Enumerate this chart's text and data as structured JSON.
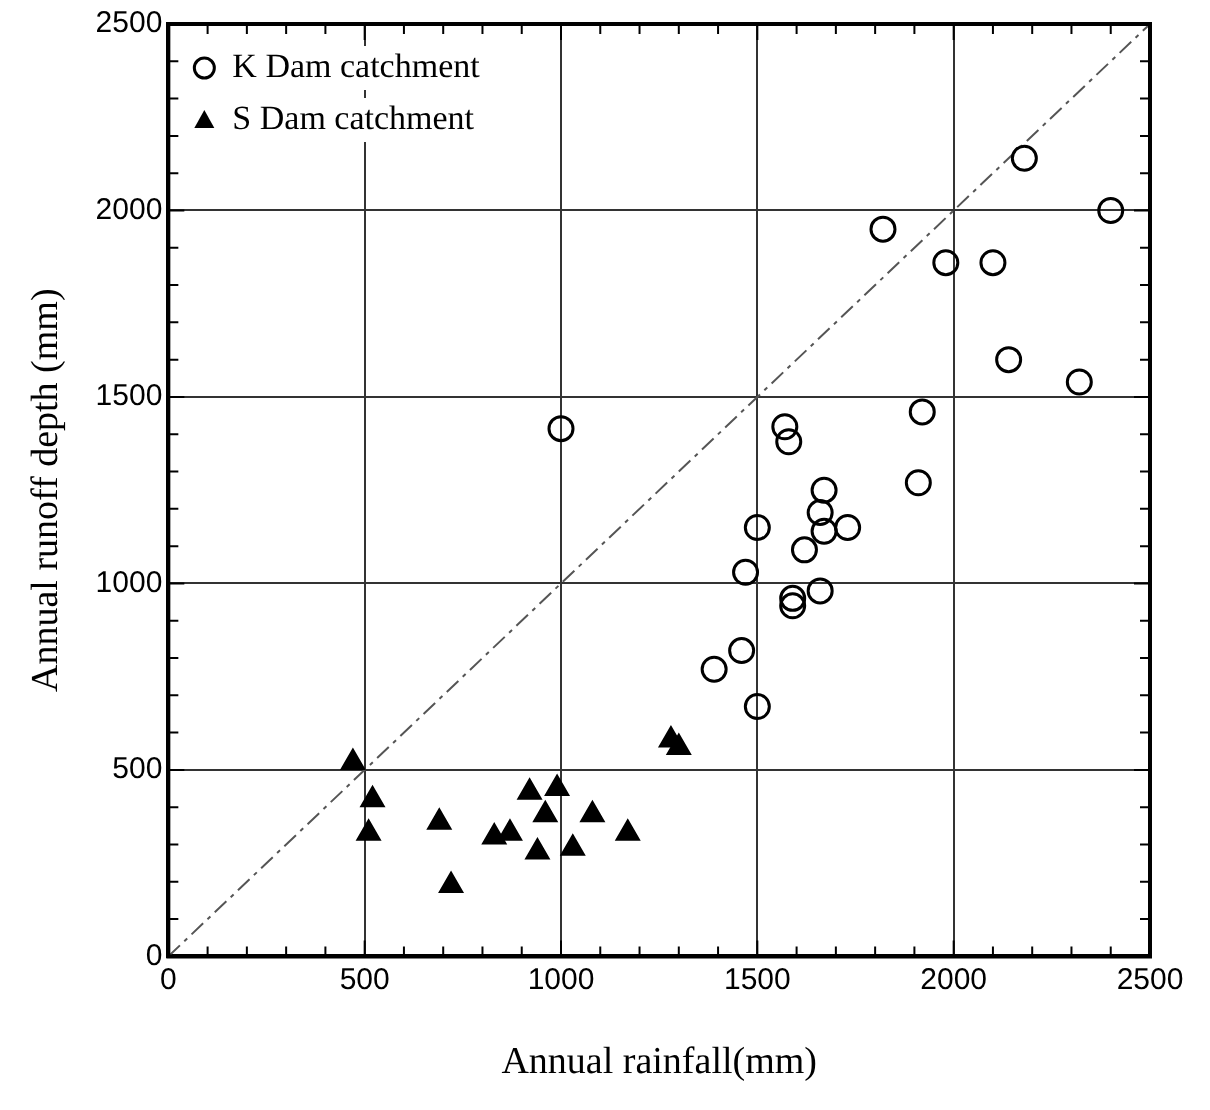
{
  "chart_data": {
    "type": "scatter",
    "xlabel": "Annual rainfall(mm)",
    "ylabel": "Annual runoff depth (mm)",
    "xlim": [
      0,
      2500
    ],
    "ylim": [
      0,
      2500
    ],
    "xticks": [
      0,
      500,
      1000,
      1500,
      2000,
      2500
    ],
    "yticks": [
      0,
      500,
      1000,
      1500,
      2000,
      2500
    ],
    "grid": true,
    "legend": "top left",
    "series": [
      {
        "name": "K Dam catchment",
        "color": "#000000",
        "marker": "circle",
        "x": [
          1000,
          2180,
          2400,
          1820,
          1980,
          2100,
          2140,
          2320,
          1920,
          1570,
          1580,
          1910,
          1670,
          1660,
          1620,
          1670,
          1730,
          1500,
          1470,
          1590,
          1590,
          1660,
          1460,
          1390,
          1500
        ],
        "values": [
          1415,
          2140,
          2000,
          1950,
          1860,
          1860,
          1600,
          1540,
          1460,
          1420,
          1380,
          1270,
          1250,
          1190,
          1090,
          1140,
          1150,
          1150,
          1030,
          960,
          940,
          980,
          820,
          770,
          670
        ]
      },
      {
        "name": "S Dam catchment",
        "color": "#000000",
        "marker": "triangle",
        "x": [
          470,
          520,
          510,
          690,
          720,
          830,
          870,
          920,
          940,
          960,
          990,
          1030,
          1080,
          1170,
          1280,
          1300
        ],
        "values": [
          520,
          420,
          330,
          360,
          190,
          320,
          330,
          440,
          280,
          380,
          450,
          290,
          380,
          330,
          580,
          560
        ]
      },
      {
        "type": "line",
        "color": "#555555",
        "marker": "none",
        "line_style": "dashed",
        "x": [
          0,
          2500
        ],
        "values": [
          0,
          2500
        ]
      }
    ]
  }
}
